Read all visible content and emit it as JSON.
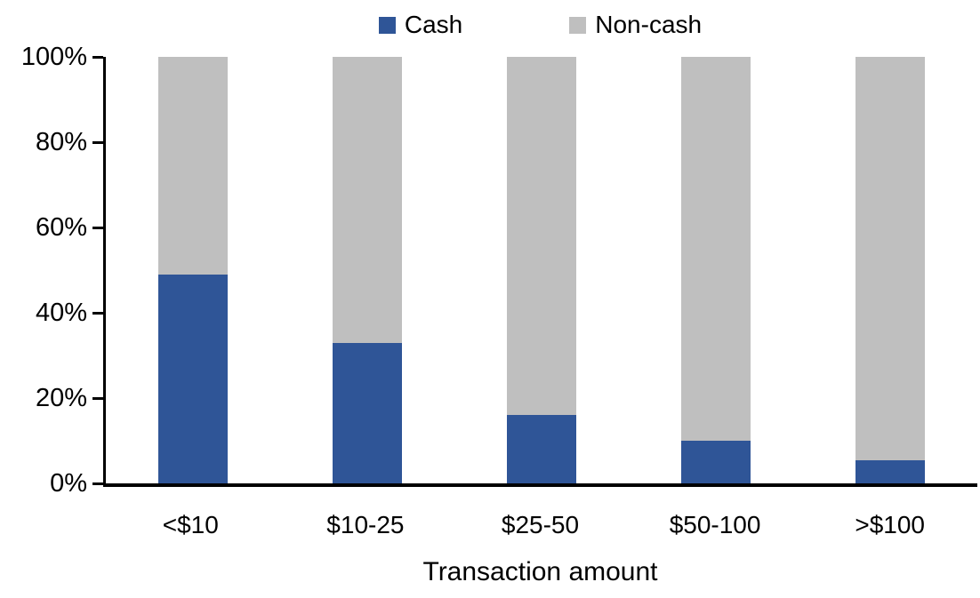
{
  "chart_data": {
    "type": "bar",
    "stacked": true,
    "percent_stacked": true,
    "title": "",
    "xlabel": "Transaction amount",
    "ylabel": "",
    "categories": [
      "<$10",
      "$10-25",
      "$25-50",
      "$50-100",
      ">$100"
    ],
    "series": [
      {
        "name": "Cash",
        "color": "#2F5597",
        "values": [
          49,
          33,
          16,
          10,
          5.5
        ]
      },
      {
        "name": "Non-cash",
        "color": "#BFBFBF",
        "values": [
          51,
          67,
          84,
          90,
          94.5
        ]
      }
    ],
    "y_axis": {
      "min": 0,
      "max": 100,
      "tick_step": 20,
      "tick_labels": [
        "0%",
        "20%",
        "40%",
        "60%",
        "80%",
        "100%"
      ]
    },
    "legend_position": "top-center",
    "grid": false,
    "axis_color": "#000000",
    "background_color": "#FFFFFF"
  }
}
